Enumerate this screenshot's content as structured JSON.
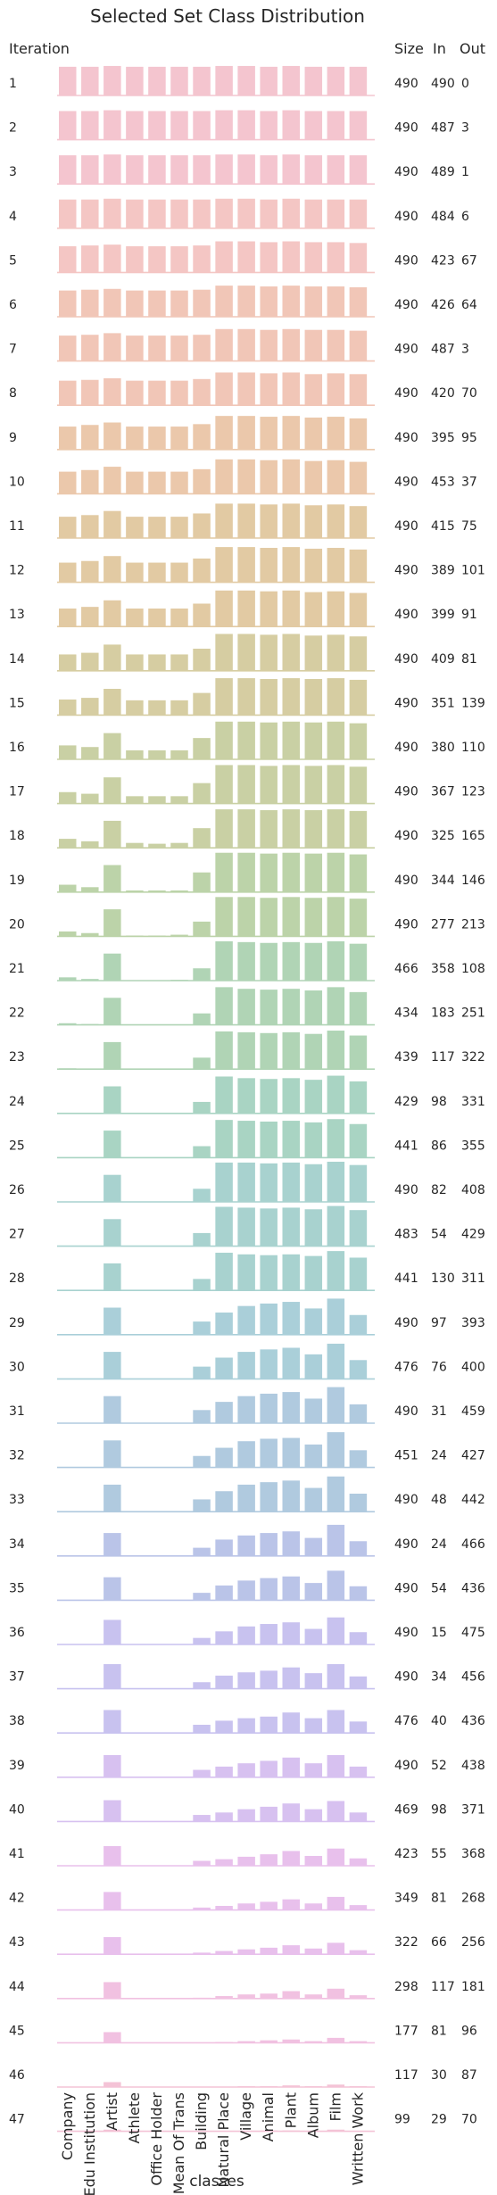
{
  "chart_data": {
    "type": "bar",
    "title": "Selected Set Class Distribution",
    "xlabel": "classes",
    "row_header": "Iteration",
    "column_headers": {
      "size": "Size",
      "in": "In",
      "out": "Out"
    },
    "categories": [
      "Company",
      "Edu Institution",
      "Artist",
      "Athlete",
      "Office Holder",
      "Mean Of Trans",
      "Building",
      "Natural Place",
      "Village",
      "Animal",
      "Plant",
      "Album",
      "Film",
      "Written Work"
    ],
    "palette": [
      "#f4c5cf",
      "#f4c6c4",
      "#f1c6b7",
      "#ebc8ab",
      "#e2caa3",
      "#d6cda2",
      "#c9d0a4",
      "#bcd3a9",
      "#b0d4b5",
      "#a9d4c3",
      "#a8d2cf",
      "#aacfd9",
      "#b0cadf",
      "#bac4e8",
      "#c8c2ef",
      "#d7c1f0",
      "#e8c0ec",
      "#f1c1e1",
      "#f4c3d6"
    ],
    "iterations": [
      {
        "label": "1",
        "size": "490",
        "in": "490",
        "out": "0",
        "values": [
          35,
          35,
          36,
          35,
          35,
          35,
          35,
          36,
          36,
          35,
          36,
          35,
          35,
          35
        ]
      },
      {
        "label": "2",
        "size": "490",
        "in": "487",
        "out": "3",
        "values": [
          35,
          35,
          36,
          35,
          35,
          35,
          35,
          36,
          36,
          35,
          36,
          35,
          35,
          35
        ]
      },
      {
        "label": "3",
        "size": "490",
        "in": "489",
        "out": "1",
        "values": [
          35,
          35,
          36,
          35,
          35,
          35,
          35,
          36,
          36,
          35,
          36,
          35,
          35,
          35
        ]
      },
      {
        "label": "4",
        "size": "490",
        "in": "484",
        "out": "6",
        "values": [
          35,
          35,
          36,
          35,
          35,
          35,
          35,
          36,
          36,
          35,
          36,
          35,
          35,
          35
        ]
      },
      {
        "label": "5",
        "size": "490",
        "in": "423",
        "out": "67",
        "values": [
          32,
          33,
          34,
          32,
          32,
          32,
          33,
          38,
          38,
          37,
          38,
          37,
          37,
          36
        ]
      },
      {
        "label": "6",
        "size": "490",
        "in": "426",
        "out": "64",
        "values": [
          32,
          33,
          34,
          32,
          32,
          32,
          33,
          38,
          38,
          37,
          38,
          37,
          37,
          36
        ]
      },
      {
        "label": "7",
        "size": "490",
        "in": "487",
        "out": "3",
        "values": [
          31,
          32,
          34,
          31,
          31,
          31,
          32,
          39,
          39,
          38,
          39,
          38,
          38,
          37
        ]
      },
      {
        "label": "8",
        "size": "490",
        "in": "420",
        "out": "70",
        "values": [
          30,
          31,
          33,
          30,
          30,
          30,
          32,
          40,
          40,
          39,
          40,
          38,
          39,
          38
        ]
      },
      {
        "label": "9",
        "size": "490",
        "in": "395",
        "out": "95",
        "values": [
          28,
          30,
          33,
          28,
          28,
          28,
          31,
          41,
          41,
          40,
          41,
          39,
          40,
          38
        ]
      },
      {
        "label": "10",
        "size": "490",
        "in": "453",
        "out": "37",
        "values": [
          27,
          29,
          33,
          27,
          27,
          27,
          30,
          42,
          42,
          41,
          42,
          40,
          41,
          39
        ]
      },
      {
        "label": "11",
        "size": "490",
        "in": "415",
        "out": "75",
        "values": [
          26,
          28,
          33,
          26,
          26,
          26,
          30,
          42,
          42,
          41,
          42,
          40,
          41,
          39
        ]
      },
      {
        "label": "12",
        "size": "490",
        "in": "389",
        "out": "101",
        "values": [
          24,
          26,
          32,
          24,
          24,
          24,
          29,
          43,
          43,
          42,
          43,
          41,
          42,
          40
        ]
      },
      {
        "label": "13",
        "size": "490",
        "in": "399",
        "out": "91",
        "values": [
          22,
          24,
          32,
          22,
          22,
          22,
          28,
          44,
          44,
          43,
          44,
          42,
          43,
          41
        ]
      },
      {
        "label": "14",
        "size": "490",
        "in": "409",
        "out": "81",
        "values": [
          20,
          22,
          32,
          20,
          20,
          20,
          27,
          45,
          45,
          44,
          45,
          43,
          44,
          42
        ]
      },
      {
        "label": "15",
        "size": "490",
        "in": "351",
        "out": "139",
        "values": [
          19,
          21,
          32,
          18,
          18,
          18,
          27,
          45,
          45,
          44,
          45,
          44,
          45,
          43
        ]
      },
      {
        "label": "16",
        "size": "490",
        "in": "380",
        "out": "110",
        "values": [
          17,
          15,
          32,
          11,
          11,
          11,
          26,
          46,
          46,
          45,
          46,
          45,
          46,
          44
        ]
      },
      {
        "label": "17",
        "size": "490",
        "in": "367",
        "out": "123",
        "values": [
          14,
          12,
          32,
          9,
          9,
          9,
          25,
          47,
          47,
          46,
          47,
          46,
          47,
          45
        ]
      },
      {
        "label": "18",
        "size": "490",
        "in": "325",
        "out": "165",
        "values": [
          11,
          8,
          33,
          6,
          5,
          6,
          24,
          47,
          47,
          46,
          47,
          46,
          47,
          45
        ]
      },
      {
        "label": "19",
        "size": "490",
        "in": "344",
        "out": "146",
        "values": [
          9,
          6,
          33,
          2,
          2,
          2,
          24,
          48,
          48,
          47,
          48,
          47,
          48,
          46
        ]
      },
      {
        "label": "20",
        "size": "490",
        "in": "277",
        "out": "213",
        "values": [
          6,
          4,
          33,
          1,
          1,
          2,
          18,
          48,
          48,
          47,
          48,
          47,
          48,
          46
        ]
      },
      {
        "label": "21",
        "size": "466",
        "in": "358",
        "out": "108",
        "values": [
          4,
          2,
          33,
          0,
          0,
          1,
          15,
          48,
          47,
          46,
          47,
          46,
          48,
          45
        ]
      },
      {
        "label": "22",
        "size": "434",
        "in": "183",
        "out": "251",
        "values": [
          2,
          1,
          33,
          0,
          0,
          0,
          14,
          46,
          44,
          43,
          44,
          42,
          46,
          40
        ]
      },
      {
        "label": "23",
        "size": "439",
        "in": "117",
        "out": "322",
        "values": [
          1,
          0,
          33,
          0,
          0,
          0,
          14,
          46,
          45,
          44,
          45,
          43,
          47,
          41
        ]
      },
      {
        "label": "24",
        "size": "429",
        "in": "98",
        "out": "331",
        "values": [
          0,
          0,
          33,
          0,
          0,
          0,
          14,
          45,
          43,
          42,
          43,
          41,
          46,
          39
        ]
      },
      {
        "label": "25",
        "size": "441",
        "in": "86",
        "out": "355",
        "values": [
          0,
          0,
          33,
          0,
          0,
          0,
          14,
          46,
          45,
          44,
          45,
          43,
          47,
          41
        ]
      },
      {
        "label": "26",
        "size": "490",
        "in": "82",
        "out": "408",
        "values": [
          0,
          0,
          33,
          0,
          0,
          0,
          16,
          48,
          48,
          47,
          48,
          46,
          49,
          45
        ]
      },
      {
        "label": "27",
        "size": "483",
        "in": "54",
        "out": "429",
        "values": [
          0,
          0,
          33,
          0,
          0,
          0,
          16,
          48,
          47,
          46,
          47,
          45,
          49,
          44
        ]
      },
      {
        "label": "28",
        "size": "441",
        "in": "130",
        "out": "311",
        "values": [
          0,
          0,
          33,
          0,
          0,
          0,
          14,
          46,
          44,
          43,
          44,
          42,
          48,
          40
        ]
      },
      {
        "label": "29",
        "size": "490",
        "in": "97",
        "out": "393",
        "values": [
          0,
          0,
          33,
          0,
          0,
          0,
          16,
          27,
          35,
          38,
          40,
          32,
          44,
          24
        ]
      },
      {
        "label": "30",
        "size": "476",
        "in": "76",
        "out": "400",
        "values": [
          0,
          0,
          33,
          0,
          0,
          0,
          15,
          26,
          33,
          36,
          38,
          30,
          43,
          23
        ]
      },
      {
        "label": "31",
        "size": "490",
        "in": "31",
        "out": "459",
        "values": [
          0,
          0,
          33,
          0,
          0,
          0,
          16,
          26,
          33,
          36,
          38,
          30,
          44,
          23
        ]
      },
      {
        "label": "32",
        "size": "451",
        "in": "24",
        "out": "427",
        "values": [
          0,
          0,
          33,
          0,
          0,
          0,
          14,
          24,
          32,
          35,
          36,
          28,
          43,
          21
        ]
      },
      {
        "label": "33",
        "size": "490",
        "in": "48",
        "out": "442",
        "values": [
          0,
          0,
          33,
          0,
          0,
          0,
          15,
          25,
          33,
          36,
          38,
          29,
          43,
          22
        ]
      },
      {
        "label": "34",
        "size": "490",
        "in": "24",
        "out": "466",
        "values": [
          0,
          0,
          28,
          0,
          0,
          0,
          10,
          20,
          25,
          28,
          30,
          22,
          38,
          18
        ]
      },
      {
        "label": "35",
        "size": "490",
        "in": "54",
        "out": "436",
        "values": [
          0,
          0,
          28,
          0,
          0,
          0,
          9,
          18,
          24,
          27,
          29,
          21,
          36,
          17
        ]
      },
      {
        "label": "36",
        "size": "490",
        "in": "15",
        "out": "475",
        "values": [
          0,
          0,
          30,
          0,
          0,
          0,
          8,
          16,
          22,
          25,
          27,
          19,
          33,
          15
        ]
      },
      {
        "label": "37",
        "size": "490",
        "in": "34",
        "out": "456",
        "values": [
          0,
          0,
          30,
          0,
          0,
          0,
          8,
          16,
          20,
          22,
          26,
          19,
          30,
          15
        ]
      },
      {
        "label": "38",
        "size": "476",
        "in": "40",
        "out": "436",
        "values": [
          0,
          0,
          28,
          0,
          0,
          0,
          10,
          15,
          18,
          20,
          25,
          18,
          28,
          14
        ]
      },
      {
        "label": "39",
        "size": "490",
        "in": "52",
        "out": "438",
        "values": [
          0,
          0,
          27,
          0,
          0,
          0,
          9,
          13,
          17,
          20,
          24,
          17,
          27,
          13
        ]
      },
      {
        "label": "40",
        "size": "469",
        "in": "98",
        "out": "371",
        "values": [
          0,
          0,
          26,
          0,
          0,
          0,
          8,
          11,
          15,
          18,
          22,
          15,
          25,
          11
        ]
      },
      {
        "label": "41",
        "size": "423",
        "in": "55",
        "out": "368",
        "values": [
          0,
          0,
          24,
          0,
          0,
          0,
          6,
          8,
          11,
          14,
          18,
          12,
          21,
          9
        ]
      },
      {
        "label": "42",
        "size": "349",
        "in": "81",
        "out": "268",
        "values": [
          0,
          0,
          22,
          0,
          0,
          0,
          3,
          5,
          8,
          10,
          13,
          8,
          16,
          6
        ]
      },
      {
        "label": "43",
        "size": "322",
        "in": "66",
        "out": "256",
        "values": [
          0,
          0,
          21,
          0,
          0,
          0,
          2,
          4,
          6,
          8,
          11,
          7,
          14,
          5
        ]
      },
      {
        "label": "44",
        "size": "298",
        "in": "117",
        "out": "181",
        "values": [
          0,
          0,
          20,
          0,
          0,
          0,
          1,
          3,
          5,
          6,
          9,
          5,
          12,
          4
        ]
      },
      {
        "label": "45",
        "size": "177",
        "in": "81",
        "out": "96",
        "values": [
          0,
          0,
          13,
          0,
          0,
          0,
          0,
          1,
          2,
          3,
          4,
          2,
          6,
          2
        ]
      },
      {
        "label": "46",
        "size": "117",
        "in": "30",
        "out": "87",
        "values": [
          0,
          0,
          6,
          0,
          0,
          0,
          0,
          0,
          1,
          1,
          2,
          1,
          3,
          1
        ]
      },
      {
        "label": "47",
        "size": "99",
        "in": "29",
        "out": "70",
        "values": [
          0,
          0,
          2,
          0,
          0,
          0,
          0,
          0,
          0,
          1,
          1,
          0,
          2,
          0
        ]
      }
    ]
  }
}
